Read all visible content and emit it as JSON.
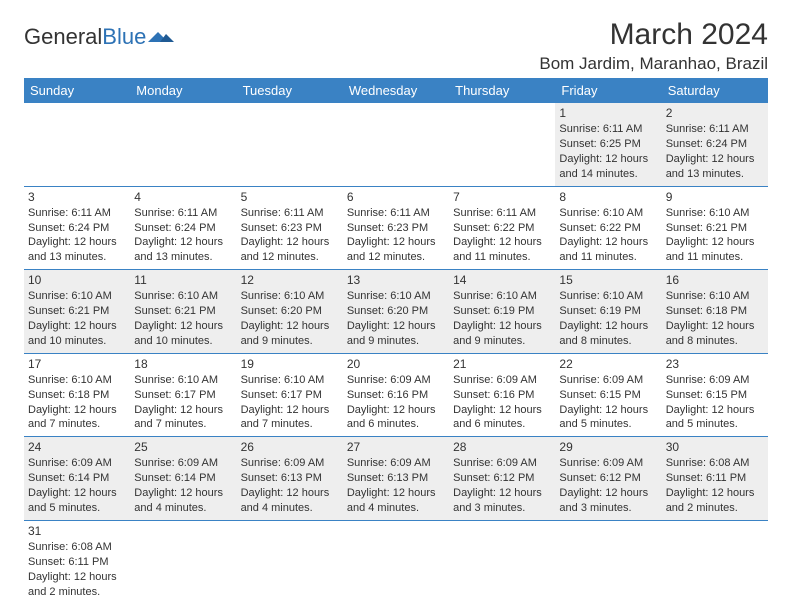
{
  "logo": {
    "text1": "General",
    "text2": "Blue"
  },
  "title": "March 2024",
  "location": "Bom Jardim, Maranhao, Brazil",
  "colors": {
    "header_bg": "#3a82c4",
    "header_text": "#ffffff",
    "cell_border": "#3a82c4",
    "odd_row_bg": "#eeeeee",
    "even_row_bg": "#ffffff",
    "text": "#333333",
    "logo_blue": "#2d72b5"
  },
  "day_headers": [
    "Sunday",
    "Monday",
    "Tuesday",
    "Wednesday",
    "Thursday",
    "Friday",
    "Saturday"
  ],
  "weeks": [
    [
      null,
      null,
      null,
      null,
      null,
      {
        "n": "1",
        "sr": "6:11 AM",
        "ss": "6:25 PM",
        "dl": "12 hours and 14 minutes."
      },
      {
        "n": "2",
        "sr": "6:11 AM",
        "ss": "6:24 PM",
        "dl": "12 hours and 13 minutes."
      }
    ],
    [
      {
        "n": "3",
        "sr": "6:11 AM",
        "ss": "6:24 PM",
        "dl": "12 hours and 13 minutes."
      },
      {
        "n": "4",
        "sr": "6:11 AM",
        "ss": "6:24 PM",
        "dl": "12 hours and 13 minutes."
      },
      {
        "n": "5",
        "sr": "6:11 AM",
        "ss": "6:23 PM",
        "dl": "12 hours and 12 minutes."
      },
      {
        "n": "6",
        "sr": "6:11 AM",
        "ss": "6:23 PM",
        "dl": "12 hours and 12 minutes."
      },
      {
        "n": "7",
        "sr": "6:11 AM",
        "ss": "6:22 PM",
        "dl": "12 hours and 11 minutes."
      },
      {
        "n": "8",
        "sr": "6:10 AM",
        "ss": "6:22 PM",
        "dl": "12 hours and 11 minutes."
      },
      {
        "n": "9",
        "sr": "6:10 AM",
        "ss": "6:21 PM",
        "dl": "12 hours and 11 minutes."
      }
    ],
    [
      {
        "n": "10",
        "sr": "6:10 AM",
        "ss": "6:21 PM",
        "dl": "12 hours and 10 minutes."
      },
      {
        "n": "11",
        "sr": "6:10 AM",
        "ss": "6:21 PM",
        "dl": "12 hours and 10 minutes."
      },
      {
        "n": "12",
        "sr": "6:10 AM",
        "ss": "6:20 PM",
        "dl": "12 hours and 9 minutes."
      },
      {
        "n": "13",
        "sr": "6:10 AM",
        "ss": "6:20 PM",
        "dl": "12 hours and 9 minutes."
      },
      {
        "n": "14",
        "sr": "6:10 AM",
        "ss": "6:19 PM",
        "dl": "12 hours and 9 minutes."
      },
      {
        "n": "15",
        "sr": "6:10 AM",
        "ss": "6:19 PM",
        "dl": "12 hours and 8 minutes."
      },
      {
        "n": "16",
        "sr": "6:10 AM",
        "ss": "6:18 PM",
        "dl": "12 hours and 8 minutes."
      }
    ],
    [
      {
        "n": "17",
        "sr": "6:10 AM",
        "ss": "6:18 PM",
        "dl": "12 hours and 7 minutes."
      },
      {
        "n": "18",
        "sr": "6:10 AM",
        "ss": "6:17 PM",
        "dl": "12 hours and 7 minutes."
      },
      {
        "n": "19",
        "sr": "6:10 AM",
        "ss": "6:17 PM",
        "dl": "12 hours and 7 minutes."
      },
      {
        "n": "20",
        "sr": "6:09 AM",
        "ss": "6:16 PM",
        "dl": "12 hours and 6 minutes."
      },
      {
        "n": "21",
        "sr": "6:09 AM",
        "ss": "6:16 PM",
        "dl": "12 hours and 6 minutes."
      },
      {
        "n": "22",
        "sr": "6:09 AM",
        "ss": "6:15 PM",
        "dl": "12 hours and 5 minutes."
      },
      {
        "n": "23",
        "sr": "6:09 AM",
        "ss": "6:15 PM",
        "dl": "12 hours and 5 minutes."
      }
    ],
    [
      {
        "n": "24",
        "sr": "6:09 AM",
        "ss": "6:14 PM",
        "dl": "12 hours and 5 minutes."
      },
      {
        "n": "25",
        "sr": "6:09 AM",
        "ss": "6:14 PM",
        "dl": "12 hours and 4 minutes."
      },
      {
        "n": "26",
        "sr": "6:09 AM",
        "ss": "6:13 PM",
        "dl": "12 hours and 4 minutes."
      },
      {
        "n": "27",
        "sr": "6:09 AM",
        "ss": "6:13 PM",
        "dl": "12 hours and 4 minutes."
      },
      {
        "n": "28",
        "sr": "6:09 AM",
        "ss": "6:12 PM",
        "dl": "12 hours and 3 minutes."
      },
      {
        "n": "29",
        "sr": "6:09 AM",
        "ss": "6:12 PM",
        "dl": "12 hours and 3 minutes."
      },
      {
        "n": "30",
        "sr": "6:08 AM",
        "ss": "6:11 PM",
        "dl": "12 hours and 2 minutes."
      }
    ],
    [
      {
        "n": "31",
        "sr": "6:08 AM",
        "ss": "6:11 PM",
        "dl": "12 hours and 2 minutes."
      },
      null,
      null,
      null,
      null,
      null,
      null
    ]
  ],
  "labels": {
    "sunrise": "Sunrise: ",
    "sunset": "Sunset: ",
    "daylight": "Daylight: "
  }
}
